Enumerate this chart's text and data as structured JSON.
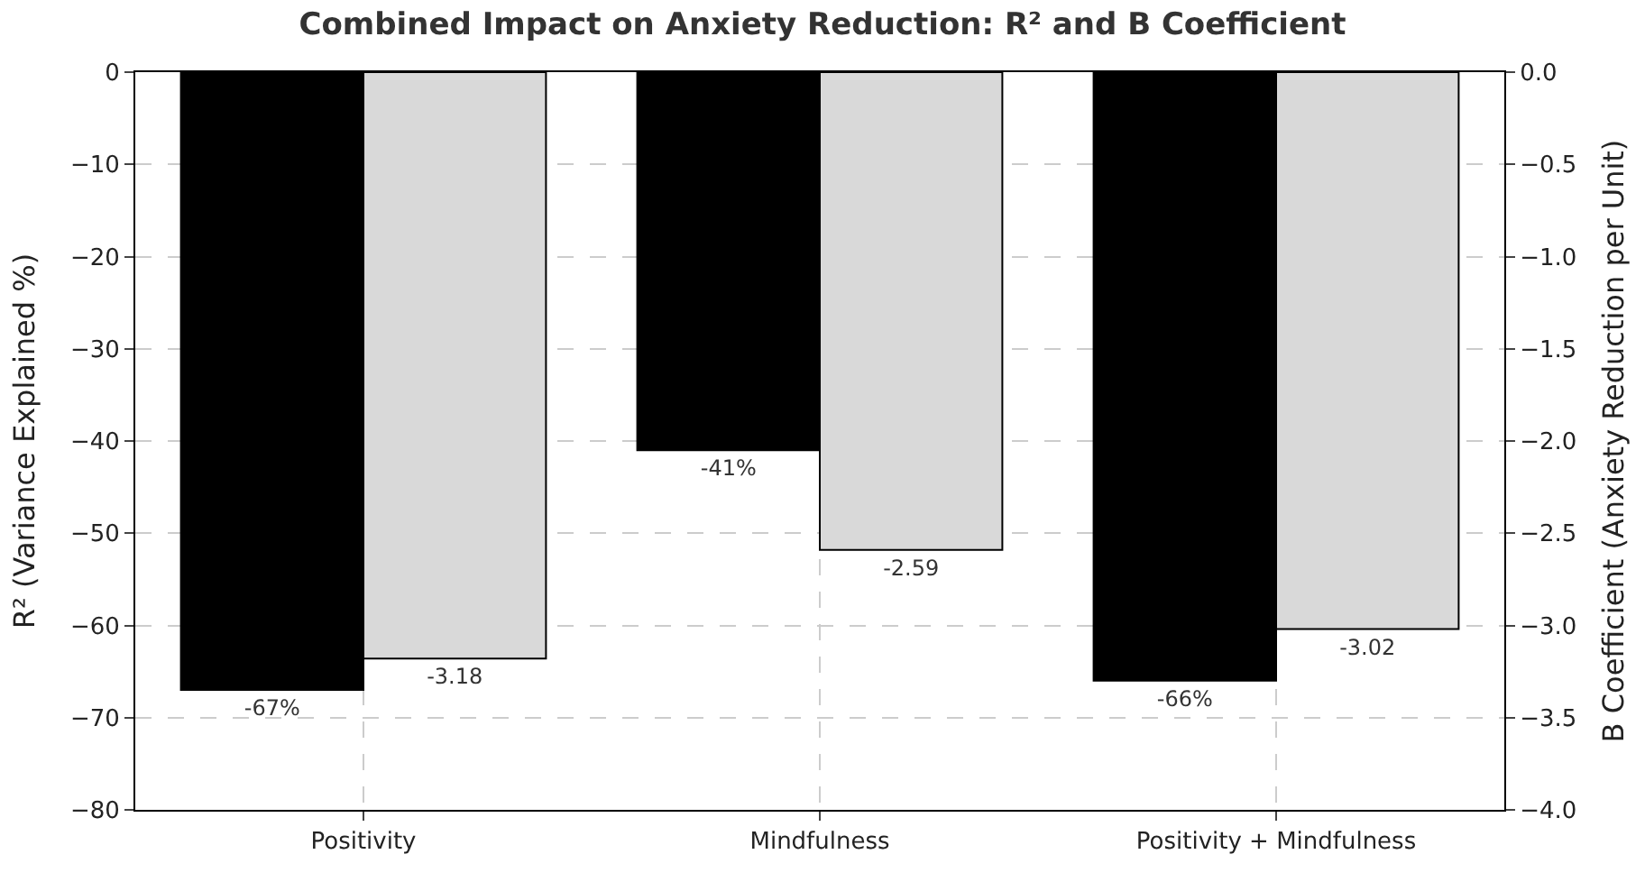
{
  "chart_data": {
    "type": "bar",
    "title": "Combined Impact on Anxiety Reduction: R² and B Coefficient",
    "categories": [
      "Positivity",
      "Mindfulness",
      "Positivity + Mindfulness"
    ],
    "ylabel": "R² (Variance Explained %)",
    "y2label": "B Coefficient (Anxiety Reduction per Unit)",
    "series": [
      {
        "color": "#000000",
        "values": [
          -67,
          -41,
          -66
        ],
        "value_labels": [
          "-67%",
          "-41%",
          "-66%"
        ]
      },
      {
        "color": "#d9d9d9",
        "values": [
          -3.18,
          -2.59,
          -3.02
        ],
        "value_labels": [
          "-3.18",
          "-2.59",
          "-3.02"
        ],
        "axis": "y2"
      }
    ],
    "ylim": [
      -80,
      0
    ],
    "yticks": [
      {
        "value": -80,
        "label": "−80"
      },
      {
        "value": -70,
        "label": "−70"
      },
      {
        "value": -60,
        "label": "−60"
      },
      {
        "value": -50,
        "label": "−50"
      },
      {
        "value": -40,
        "label": "−40"
      },
      {
        "value": -30,
        "label": "−30"
      },
      {
        "value": -20,
        "label": "−20"
      },
      {
        "value": -10,
        "label": "−10"
      },
      0
    ],
    "y2lim": [
      -4.0,
      0.0
    ],
    "y2ticks": [
      {
        "value": -4.0,
        "label": "−4.0"
      },
      {
        "value": -3.5,
        "label": "−3.5"
      },
      {
        "value": -3.0,
        "label": "−3.0"
      },
      {
        "value": -2.5,
        "label": "−2.5"
      },
      {
        "value": -2.0,
        "label": "−2.0"
      },
      {
        "value": -1.5,
        "label": "−1.5"
      },
      {
        "value": -1.0,
        "label": "−1.0"
      },
      {
        "value": -0.5,
        "label": "−0.5"
      },
      {
        "value": 0.0,
        "label": "0.0"
      }
    ],
    "grid": true,
    "line_style": "dashed"
  }
}
